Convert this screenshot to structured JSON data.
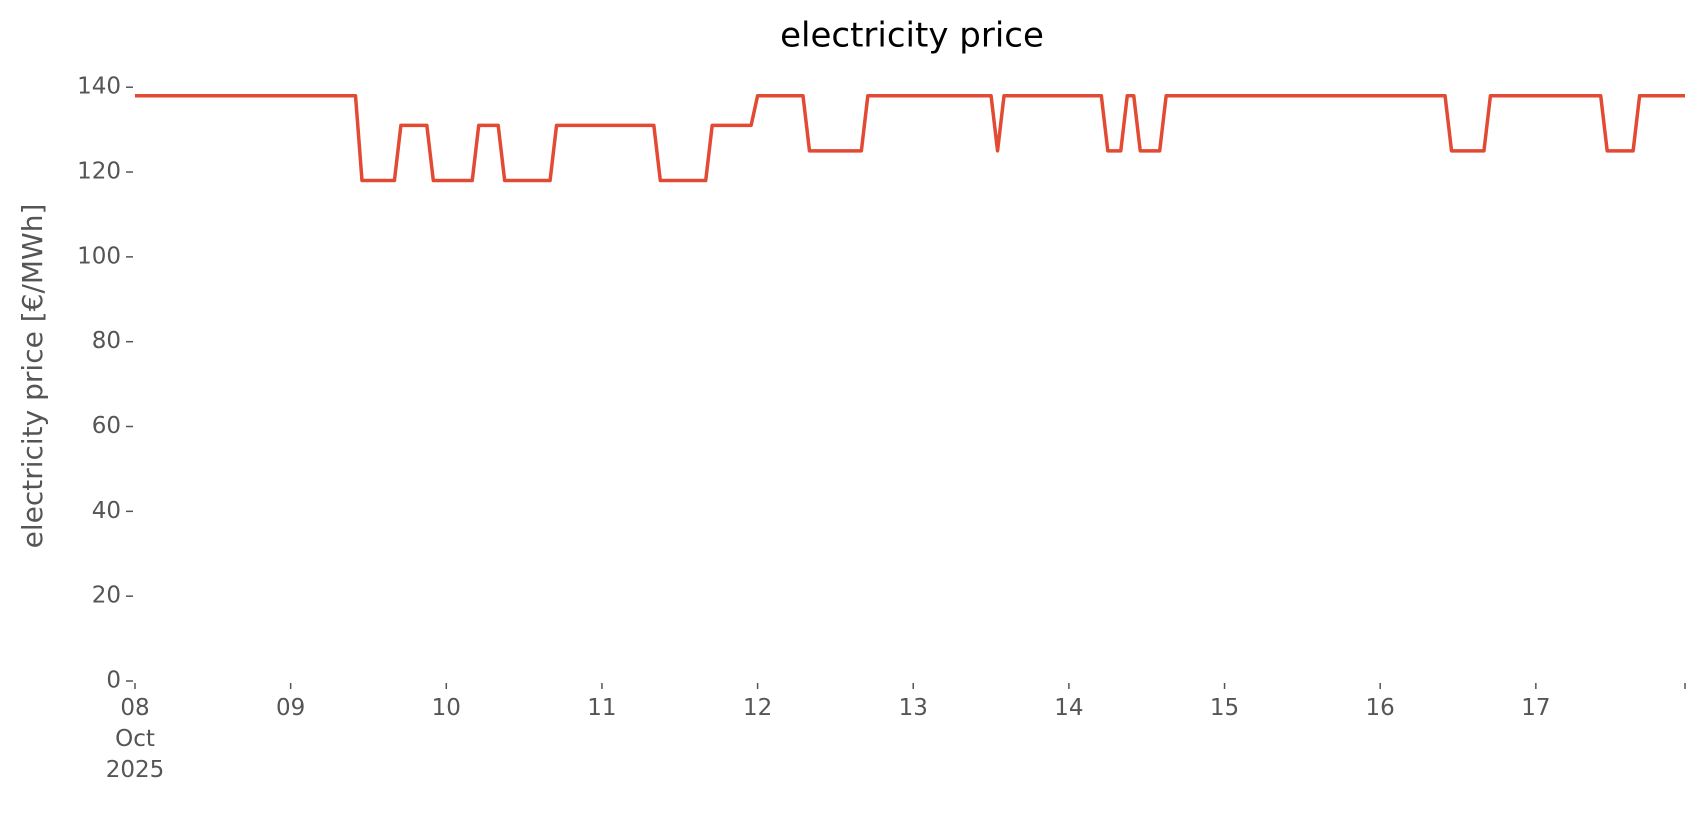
{
  "chart_data": {
    "type": "line",
    "title": "electricity price",
    "ylabel": "electricity price [€/MWh]",
    "x": [
      "2025-10-08T00:00",
      "2025-10-09T10:00",
      "2025-10-09T11:00",
      "2025-10-09T16:00",
      "2025-10-09T17:00",
      "2025-10-09T21:00",
      "2025-10-09T22:00",
      "2025-10-10T04:00",
      "2025-10-10T05:00",
      "2025-10-10T08:00",
      "2025-10-10T09:00",
      "2025-10-10T16:00",
      "2025-10-10T17:00",
      "2025-10-11T08:00",
      "2025-10-11T09:00",
      "2025-10-11T16:00",
      "2025-10-11T17:00",
      "2025-10-11T23:00",
      "2025-10-12T00:00",
      "2025-10-12T07:00",
      "2025-10-12T08:00",
      "2025-10-12T16:00",
      "2025-10-12T17:00",
      "2025-10-13T12:00",
      "2025-10-13T13:00",
      "2025-10-13T14:00",
      "2025-10-14T05:00",
      "2025-10-14T06:00",
      "2025-10-14T08:00",
      "2025-10-14T09:00",
      "2025-10-14T10:00",
      "2025-10-14T11:00",
      "2025-10-14T14:00",
      "2025-10-14T15:00",
      "2025-10-16T10:00",
      "2025-10-16T11:00",
      "2025-10-16T16:00",
      "2025-10-16T17:00",
      "2025-10-17T10:00",
      "2025-10-17T11:00",
      "2025-10-17T15:00",
      "2025-10-17T16:00",
      "2025-10-17T23:00"
    ],
    "series": [
      {
        "color": "#e24a33",
        "values": [
          138,
          138,
          118,
          118,
          131,
          131,
          118,
          118,
          131,
          131,
          118,
          118,
          131,
          131,
          118,
          118,
          131,
          131,
          138,
          138,
          125,
          125,
          138,
          138,
          125,
          138,
          138,
          125,
          125,
          138,
          138,
          125,
          125,
          138,
          138,
          125,
          125,
          138,
          138,
          125,
          125,
          138,
          138
        ]
      }
    ],
    "xlim": [
      "2025-10-08T00:00",
      "2025-10-17T23:00"
    ],
    "xticks": [
      {
        "value": "2025-10-08T00:00",
        "label": "08\nOct\n2025"
      },
      {
        "value": "2025-10-09T00:00",
        "label": "09"
      },
      {
        "value": "2025-10-10T00:00",
        "label": "10"
      },
      {
        "value": "2025-10-11T00:00",
        "label": "11"
      },
      {
        "value": "2025-10-12T00:00",
        "label": "12"
      },
      {
        "value": "2025-10-13T00:00",
        "label": "13"
      },
      {
        "value": "2025-10-14T00:00",
        "label": "14"
      },
      {
        "value": "2025-10-15T00:00",
        "label": "15"
      },
      {
        "value": "2025-10-16T00:00",
        "label": "16"
      },
      {
        "value": "2025-10-17T00:00",
        "label": "17"
      }
    ],
    "ylim": [
      0,
      145
    ],
    "yticks": [
      0,
      20,
      40,
      60,
      80,
      100,
      120,
      140
    ],
    "grid": false
  }
}
